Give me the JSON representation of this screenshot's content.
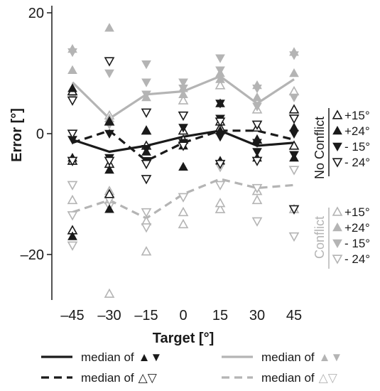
{
  "chart_data": {
    "type": "scatter",
    "title": "",
    "xlabel": "Target [°]",
    "ylabel": "Error [°]",
    "x": [
      -45,
      -30,
      -15,
      0,
      15,
      30,
      45
    ],
    "x_tick_labels": [
      "–45",
      "–30",
      "–15",
      "0",
      "15",
      "30",
      "45"
    ],
    "y_ticks": [
      20,
      0,
      -20
    ],
    "y_tick_labels": [
      "20",
      "0",
      "–20"
    ],
    "xlim": [
      -52,
      52
    ],
    "ylim": [
      -28,
      21
    ],
    "grid": false,
    "colors": {
      "no_conflict": "#1a1a1a",
      "conflict": "#b4b4b4"
    },
    "lines": [
      {
        "name": "median of ▲▼",
        "group": "no_conflict",
        "style": "solid",
        "y": [
          -1,
          -3,
          -2,
          -0.5,
          0.5,
          -2,
          -1.5
        ]
      },
      {
        "name": "median of △▽",
        "group": "no_conflict",
        "style": "dashed",
        "y": [
          -1.5,
          0.5,
          -4.5,
          -1.5,
          0.5,
          0.5,
          -1
        ]
      },
      {
        "name": "median of ▲▼",
        "group": "conflict",
        "style": "solid",
        "y": [
          8.5,
          2.5,
          6.5,
          7,
          9.5,
          5,
          9
        ]
      },
      {
        "name": "median of △▽",
        "group": "conflict",
        "style": "dashed",
        "y": [
          -13,
          -11,
          -14,
          -10,
          -7.5,
          -9,
          -8.5
        ]
      }
    ],
    "series": [
      {
        "label": "+15°",
        "group": "no_conflict",
        "marker": "up-open",
        "points": [
          [
            -45,
            -16
          ],
          [
            -45,
            -4.5
          ],
          [
            -45,
            7
          ],
          [
            -30,
            -10
          ],
          [
            -30,
            -5
          ],
          [
            -30,
            2
          ],
          [
            -15,
            -2
          ],
          [
            -15,
            0.5
          ],
          [
            0,
            -1
          ],
          [
            0,
            0.5
          ],
          [
            15,
            1
          ],
          [
            15,
            2
          ],
          [
            30,
            -1
          ],
          [
            30,
            1
          ],
          [
            45,
            -2
          ],
          [
            45,
            4
          ]
        ]
      },
      {
        "label": "+24°",
        "group": "no_conflict",
        "marker": "up-filled",
        "points": [
          [
            -45,
            -17
          ],
          [
            -45,
            -4
          ],
          [
            -45,
            7.5
          ],
          [
            -30,
            -12.5
          ],
          [
            -30,
            -6
          ],
          [
            -30,
            2
          ],
          [
            -15,
            -3
          ],
          [
            -15,
            0.5
          ],
          [
            0,
            -5.5
          ],
          [
            0,
            -2
          ],
          [
            15,
            -4.5
          ],
          [
            15,
            0.5
          ],
          [
            15,
            5
          ],
          [
            30,
            -4
          ],
          [
            30,
            -1
          ],
          [
            45,
            -4
          ],
          [
            45,
            1
          ]
        ]
      },
      {
        "label": "- 15°",
        "group": "no_conflict",
        "marker": "down-filled",
        "points": [
          [
            -45,
            -4.5
          ],
          [
            -45,
            -1
          ],
          [
            -45,
            5.5
          ],
          [
            -30,
            -4
          ],
          [
            -30,
            0
          ],
          [
            -15,
            -4.5
          ],
          [
            -15,
            -2.5
          ],
          [
            0,
            -1.5
          ],
          [
            0,
            1
          ],
          [
            15,
            -0.5
          ],
          [
            15,
            2.5
          ],
          [
            15,
            5
          ],
          [
            30,
            -3
          ],
          [
            30,
            -1.5
          ],
          [
            45,
            -3.5
          ],
          [
            45,
            0
          ]
        ]
      },
      {
        "label": "- 24°",
        "group": "no_conflict",
        "marker": "down-open",
        "points": [
          [
            -45,
            -4.5
          ],
          [
            -45,
            0
          ],
          [
            -45,
            5.5
          ],
          [
            -30,
            -4.5
          ],
          [
            -30,
            12
          ],
          [
            -15,
            -7.5
          ],
          [
            -15,
            -5
          ],
          [
            -15,
            3.5
          ],
          [
            0,
            -2
          ],
          [
            0,
            3
          ],
          [
            15,
            -5
          ],
          [
            15,
            2
          ],
          [
            30,
            -4.5
          ],
          [
            30,
            1.5
          ],
          [
            45,
            -12.5
          ],
          [
            45,
            2.5
          ]
        ]
      },
      {
        "label": "+15°",
        "group": "conflict",
        "marker": "up-open",
        "points": [
          [
            -45,
            -16
          ],
          [
            -45,
            -11
          ],
          [
            -45,
            7
          ],
          [
            -30,
            -26.5
          ],
          [
            -30,
            -11
          ],
          [
            -30,
            -9.5
          ],
          [
            -30,
            3
          ],
          [
            -15,
            -19.5
          ],
          [
            -15,
            -14.5
          ],
          [
            0,
            -15
          ],
          [
            0,
            -13
          ],
          [
            0,
            5.5
          ],
          [
            15,
            -12.5
          ],
          [
            15,
            -11.5
          ],
          [
            15,
            8
          ],
          [
            30,
            -11
          ],
          [
            30,
            -9.5
          ],
          [
            30,
            4
          ],
          [
            45,
            -12.5
          ],
          [
            45,
            7
          ]
        ]
      },
      {
        "label": "+24°",
        "group": "conflict",
        "marker": "up-filled",
        "points": [
          [
            -45,
            10.5
          ],
          [
            -45,
            14
          ],
          [
            -30,
            17.5
          ],
          [
            -30,
            2.5
          ],
          [
            -15,
            6
          ],
          [
            0,
            6.5
          ],
          [
            0,
            7.5
          ],
          [
            15,
            9
          ],
          [
            15,
            10
          ],
          [
            30,
            6
          ],
          [
            30,
            8
          ],
          [
            45,
            10
          ],
          [
            45,
            13.5
          ]
        ]
      },
      {
        "label": "- 15°",
        "group": "conflict",
        "marker": "down-filled",
        "points": [
          [
            -45,
            13.5
          ],
          [
            -45,
            6
          ],
          [
            -30,
            10
          ],
          [
            -30,
            1.5
          ],
          [
            -15,
            11.5
          ],
          [
            -15,
            8.5
          ],
          [
            -15,
            6.5
          ],
          [
            0,
            8.5
          ],
          [
            0,
            7.5
          ],
          [
            15,
            12.5
          ],
          [
            15,
            10.5
          ],
          [
            30,
            7.5
          ],
          [
            30,
            4.5
          ],
          [
            45,
            13
          ],
          [
            45,
            6
          ]
        ]
      },
      {
        "label": "- 24°",
        "group": "conflict",
        "marker": "down-open",
        "points": [
          [
            -45,
            -18.5
          ],
          [
            -45,
            -13.5
          ],
          [
            -45,
            -8.5
          ],
          [
            -30,
            -12
          ],
          [
            -30,
            -11
          ],
          [
            -15,
            -15.5
          ],
          [
            -15,
            -13
          ],
          [
            0,
            -10.5
          ],
          [
            15,
            -8.5
          ],
          [
            15,
            -5.5
          ],
          [
            30,
            -14.5
          ],
          [
            30,
            -9
          ],
          [
            45,
            -17
          ],
          [
            45,
            -6
          ]
        ]
      }
    ],
    "legend": {
      "no_conflict_title": "No Conflict",
      "conflict_title": "Conflict",
      "line_entries": [
        "median of ▲▼",
        "median of △▽",
        "median of ▲▼",
        "median of △▽"
      ]
    }
  }
}
